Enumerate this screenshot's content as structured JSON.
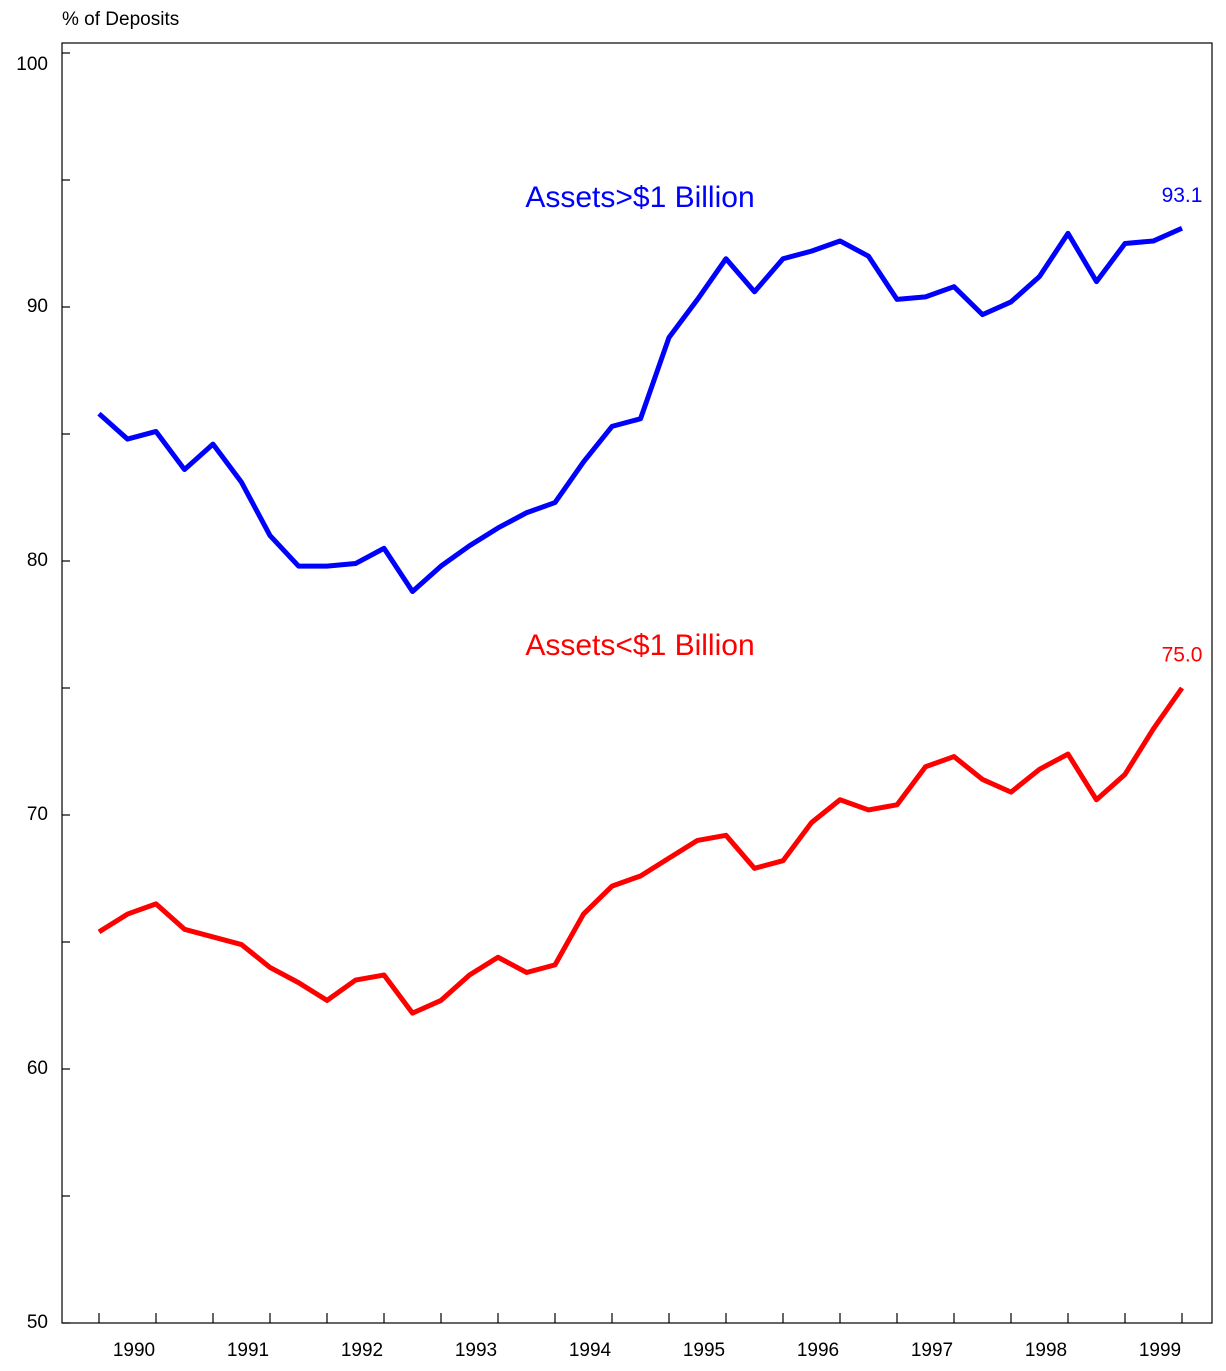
{
  "chart_data": {
    "type": "line",
    "y_axis_label": "% of Deposits",
    "categories": [
      null,
      null,
      null,
      null,
      null,
      null,
      null,
      null,
      null,
      null,
      null,
      null,
      null,
      null,
      null,
      null,
      null,
      null,
      null,
      null,
      null,
      null,
      null,
      null,
      null,
      null,
      null,
      null,
      null,
      null,
      null,
      null,
      null,
      null,
      null,
      null,
      null,
      null,
      null
    ],
    "year_labels": [
      "1990",
      "1991",
      "1992",
      "1993",
      "1994",
      "1995",
      "1996",
      "1997",
      "1998",
      "1999"
    ],
    "ylim": [
      50,
      100
    ],
    "yticks": [
      50,
      60,
      70,
      80,
      90,
      100
    ],
    "yminorticks": [
      55,
      65,
      75,
      85,
      95
    ],
    "series": [
      {
        "name": "Assets>$1 Billion",
        "color": "#0000ff",
        "values": [
          85.8,
          84.8,
          85.1,
          83.6,
          84.6,
          83.1,
          81.0,
          79.8,
          79.8,
          79.9,
          80.5,
          78.8,
          79.8,
          80.6,
          81.3,
          81.9,
          82.3,
          83.9,
          85.3,
          85.6,
          88.8,
          90.3,
          91.9,
          90.6,
          91.9,
          92.2,
          92.6,
          92.0,
          90.3,
          90.4,
          90.8,
          89.7,
          90.2,
          91.2,
          92.9,
          91.0,
          92.5,
          92.6,
          93.1
        ],
        "value_labels": [
          null,
          null,
          null,
          null,
          null,
          null,
          null,
          null,
          null,
          null,
          null,
          null,
          null,
          null,
          null,
          null,
          null,
          null,
          null,
          null,
          null,
          null,
          null,
          null,
          null,
          null,
          null,
          null,
          null,
          null,
          null,
          null,
          null,
          null,
          null,
          null,
          null,
          null,
          "93.1"
        ]
      },
      {
        "name": "Assets<$1 Billion",
        "color": "#ff0000",
        "values": [
          65.4,
          66.1,
          66.5,
          65.5,
          65.2,
          64.9,
          64.0,
          63.4,
          62.7,
          63.5,
          63.7,
          62.2,
          62.7,
          63.7,
          64.4,
          63.8,
          64.1,
          66.1,
          67.2,
          67.6,
          68.3,
          69.0,
          69.2,
          67.9,
          68.2,
          69.7,
          70.6,
          70.2,
          70.4,
          71.9,
          72.3,
          71.4,
          70.9,
          71.8,
          72.4,
          70.6,
          71.6,
          73.4,
          75.0
        ],
        "value_labels": [
          null,
          null,
          null,
          null,
          null,
          null,
          null,
          null,
          null,
          null,
          null,
          null,
          null,
          null,
          null,
          null,
          null,
          null,
          null,
          null,
          null,
          null,
          null,
          null,
          null,
          null,
          null,
          null,
          null,
          null,
          null,
          null,
          null,
          null,
          null,
          null,
          null,
          null,
          "75.0"
        ]
      }
    ]
  }
}
